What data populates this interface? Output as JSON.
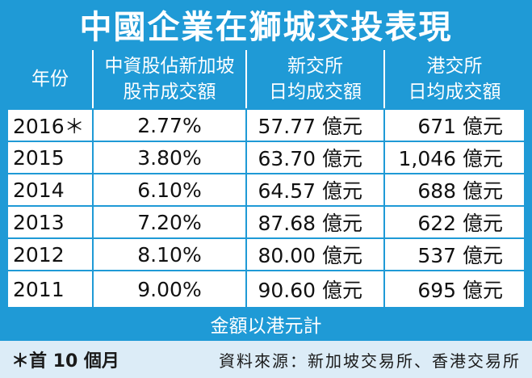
{
  "title": "中國企業在獅城交投表現",
  "headers": {
    "year": "年份",
    "pct": [
      "中資股佔新加坡",
      "股市成交額"
    ],
    "sgx": [
      "新交所",
      "日均成交額"
    ],
    "hkex": [
      "港交所",
      "日均成交額"
    ]
  },
  "rows": [
    {
      "year": "2016＊",
      "pct": "2.77%",
      "sgx": "57.77 億元",
      "hkex": "671 億元"
    },
    {
      "year": "2015",
      "pct": "3.80%",
      "sgx": "63.70 億元",
      "hkex": "1,046 億元"
    },
    {
      "year": "2014",
      "pct": "6.10%",
      "sgx": "64.57 億元",
      "hkex": "688 億元"
    },
    {
      "year": "2013",
      "pct": "7.20%",
      "sgx": "87.68 億元",
      "hkex": "622 億元"
    },
    {
      "year": "2012",
      "pct": "8.10%",
      "sgx": "80.00 億元",
      "hkex": "537 億元"
    },
    {
      "year": "2011",
      "pct": "9.00%",
      "sgx": "90.60 億元",
      "hkex": "695 億元"
    }
  ],
  "currency_note": "金額以港元計",
  "footnote": "＊首 10 個月",
  "source": "資料來源：新加坡交易所、香港交易所",
  "colors": {
    "accent": "#1f9ad6",
    "footer_bg": "#dcecf7"
  }
}
